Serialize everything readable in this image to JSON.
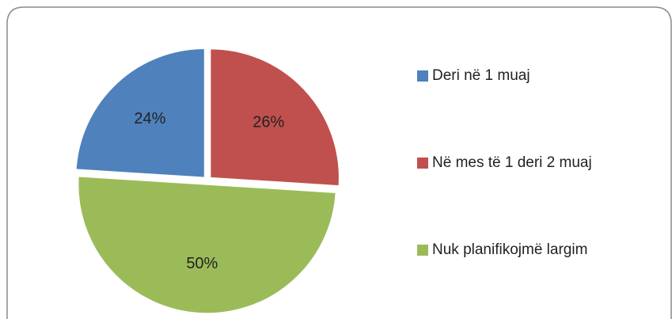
{
  "chart_data": {
    "type": "pie",
    "categories": [
      "Deri në 1 muaj",
      "Në mes të 1 deri 2 muaj",
      "Nuk planifikojmë largim"
    ],
    "values": [
      24,
      26,
      50
    ],
    "value_labels": [
      "24%",
      "26%",
      "50%"
    ],
    "colors": [
      "#4f81bd",
      "#c0504d",
      "#9bbb59"
    ],
    "legend": "right"
  }
}
